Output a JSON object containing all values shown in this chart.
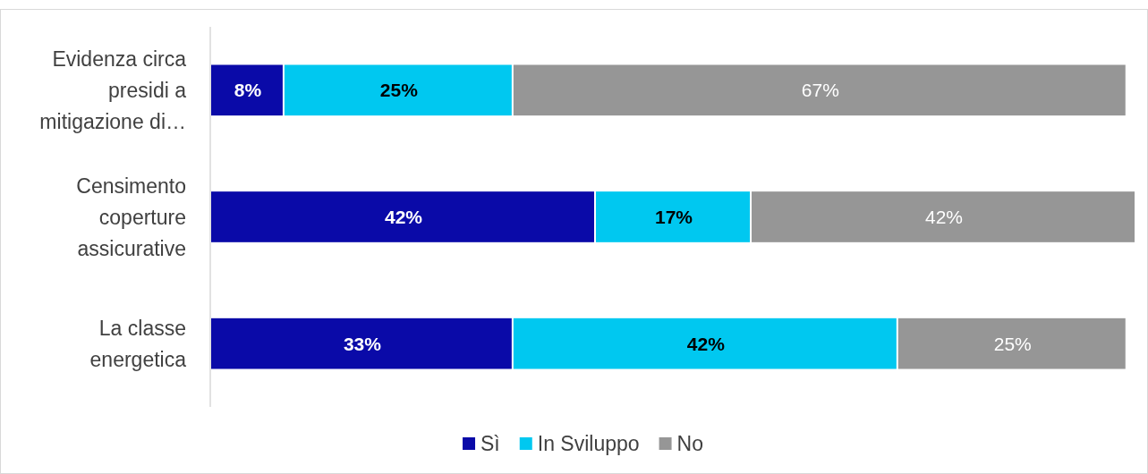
{
  "chart_data": {
    "type": "bar",
    "orientation": "horizontal",
    "stacked": true,
    "legend": "bottom",
    "categories": [
      "Evidenza circa presidi a mitigazione di…",
      "Censimento coperture assicurative",
      "La classe energetica"
    ],
    "series": [
      {
        "name": "Sì",
        "color": "#0a0aa8",
        "values": [
          8,
          42,
          33
        ],
        "value_labels": [
          "8%",
          "42%",
          "33%"
        ]
      },
      {
        "name": "In Sviluppo",
        "color": "#00c8f0",
        "values": [
          25,
          17,
          42
        ],
        "value_labels": [
          "25%",
          "17%",
          "42%"
        ]
      },
      {
        "name": "No",
        "color": "#969696",
        "values": [
          67,
          42,
          25
        ],
        "value_labels": [
          "67%",
          "42%",
          "25%"
        ]
      }
    ]
  }
}
